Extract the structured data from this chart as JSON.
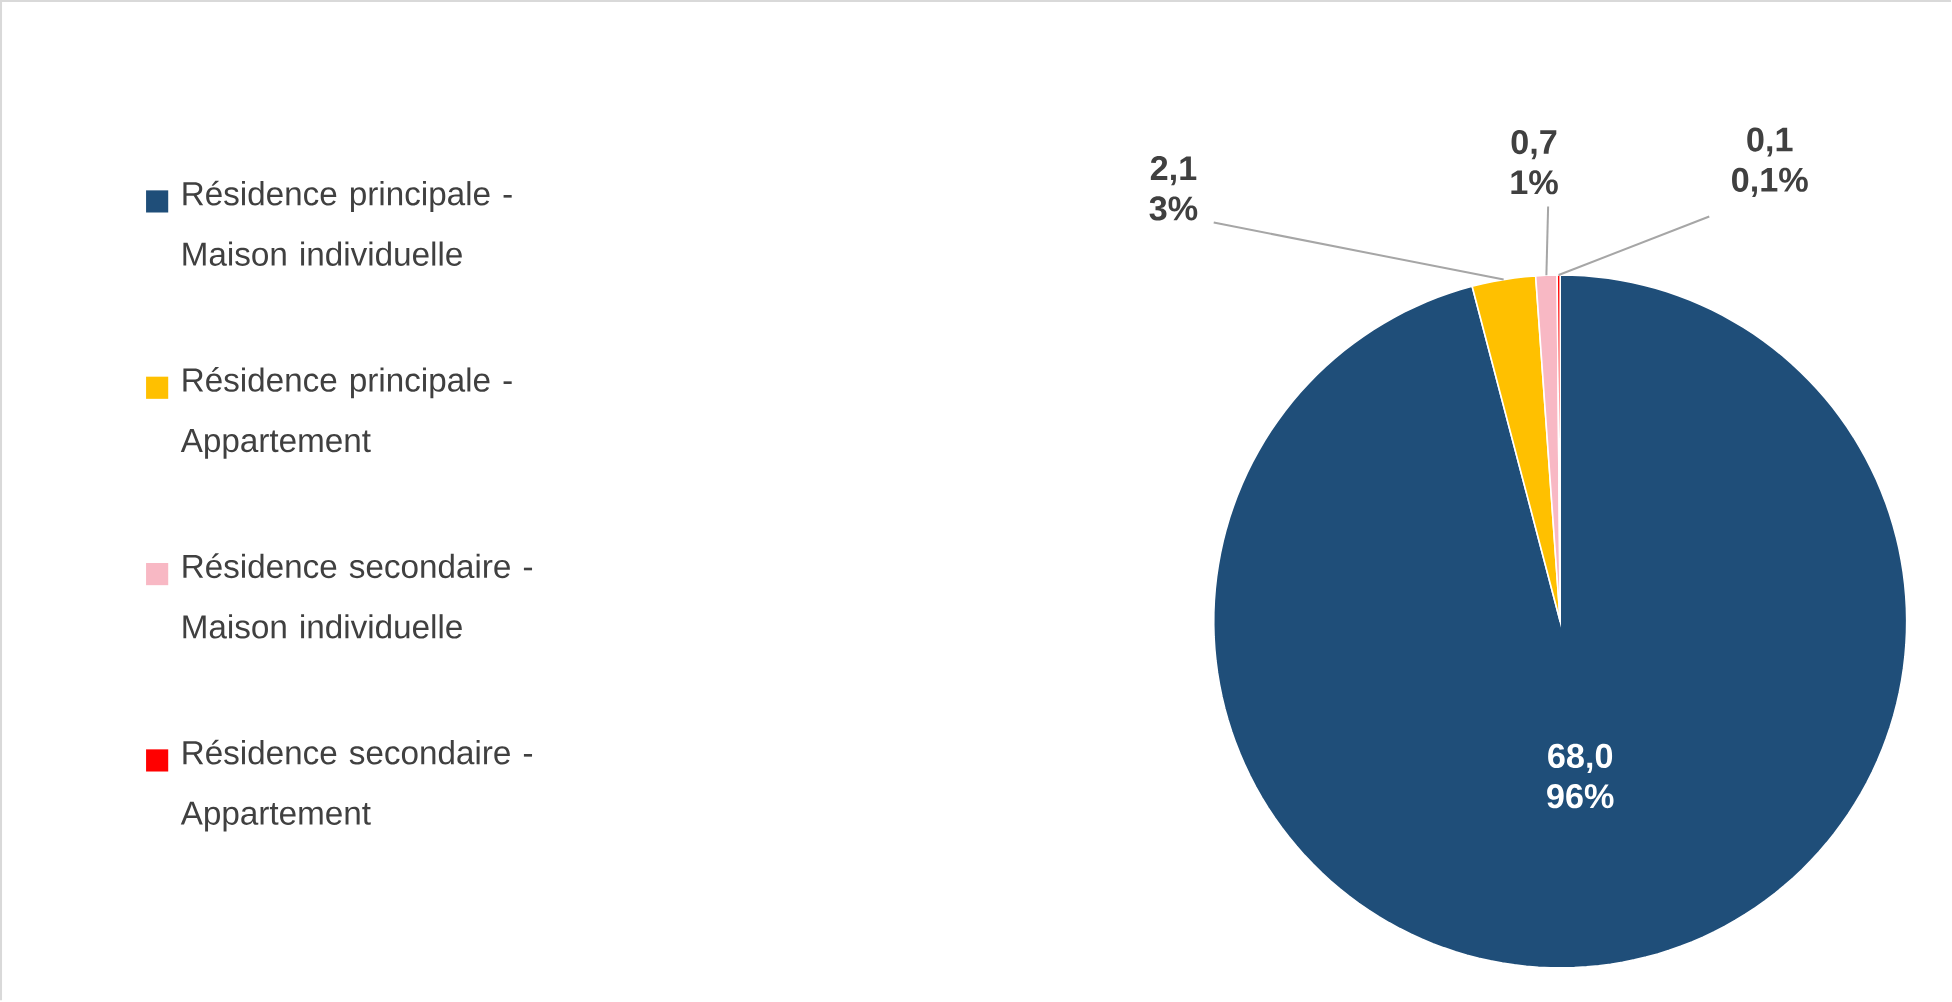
{
  "chart_data": {
    "type": "pie",
    "categories": [
      "Résidence principale - Maison individuelle",
      "Résidence principale - Appartement",
      "Résidence secondaire - Maison individuelle",
      "Résidence secondaire - Appartement"
    ],
    "values": [
      68.0,
      2.1,
      0.7,
      0.1
    ],
    "colors": [
      "#1f4e79",
      "#ffc000",
      "#f8b8c4",
      "#ff0000"
    ],
    "value_labels": [
      "68,0 96%",
      "2,1 3%",
      "0,7 1%",
      "0,1 0,1%"
    ],
    "legend": "left"
  }
}
